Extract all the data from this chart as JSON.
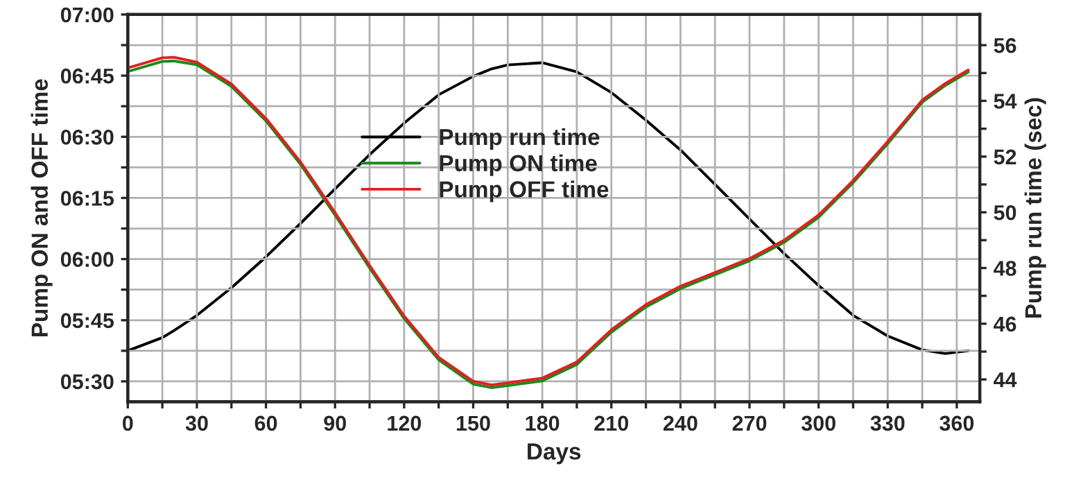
{
  "chart_data": {
    "type": "line",
    "xlabel": "Days",
    "ylabel": "Pump ON and OFF time",
    "y2label": "Pump run time (sec)",
    "x": [
      0,
      15,
      20,
      30,
      45,
      60,
      75,
      90,
      105,
      120,
      135,
      150,
      158,
      165,
      180,
      195,
      210,
      225,
      240,
      255,
      270,
      285,
      300,
      315,
      330,
      345,
      355,
      365
    ],
    "series": [
      {
        "name": "Pump run time",
        "color": "#000000",
        "axis": "y2",
        "values": [
          45.03,
          45.5,
          45.75,
          46.3,
          47.29,
          48.4,
          49.6,
          50.84,
          52.07,
          53.2,
          54.22,
          54.88,
          55.15,
          55.29,
          55.37,
          55.04,
          54.3,
          53.31,
          52.24,
          51.0,
          49.76,
          48.52,
          47.37,
          46.3,
          45.56,
          45.06,
          44.93,
          45.03
        ]
      },
      {
        "name": "Pump ON time",
        "color": "#1a8a1a",
        "values": [
          6.767,
          6.808,
          6.81,
          6.795,
          6.706,
          6.565,
          6.387,
          6.18,
          5.964,
          5.757,
          5.588,
          5.489,
          5.474,
          5.483,
          5.502,
          5.569,
          5.701,
          5.804,
          5.879,
          5.936,
          5.993,
          6.068,
          6.171,
          6.312,
          6.472,
          6.641,
          6.71,
          6.765
        ]
      },
      {
        "name": "Pump OFF time",
        "color": "#e02020",
        "values": [
          6.782,
          6.823,
          6.825,
          6.805,
          6.716,
          6.575,
          6.397,
          6.19,
          5.974,
          5.767,
          5.598,
          5.5,
          5.485,
          5.494,
          5.513,
          5.579,
          5.711,
          5.814,
          5.889,
          5.945,
          6.002,
          6.077,
          6.18,
          6.321,
          6.481,
          6.65,
          6.718,
          6.773
        ]
      }
    ],
    "xlim": [
      0,
      370
    ],
    "xticks": [
      0,
      {
        "value": 15,
        "label": null
      },
      30,
      {
        "value": 45,
        "label": null
      },
      60,
      {
        "value": 75,
        "label": null
      },
      90,
      {
        "value": 105,
        "label": null
      },
      120,
      {
        "value": 135,
        "label": null
      },
      150,
      {
        "value": 165,
        "label": null
      },
      180,
      {
        "value": 195,
        "label": null
      },
      210,
      {
        "value": 225,
        "label": null
      },
      240,
      {
        "value": 255,
        "label": null
      },
      270,
      {
        "value": 285,
        "label": null
      },
      300,
      {
        "value": 315,
        "label": null
      },
      330,
      {
        "value": 345,
        "label": null
      },
      360
    ],
    "ylim": [
      5.4167,
      7.0
    ],
    "yticks": [
      {
        "value": 5.5,
        "label": "05:30"
      },
      {
        "value": 5.625,
        "label": null
      },
      {
        "value": 5.75,
        "label": "05:45"
      },
      {
        "value": 5.875,
        "label": null
      },
      {
        "value": 6.0,
        "label": "06:00"
      },
      {
        "value": 6.125,
        "label": null
      },
      {
        "value": 6.25,
        "label": "06:15"
      },
      {
        "value": 6.375,
        "label": null
      },
      {
        "value": 6.5,
        "label": "06:30"
      },
      {
        "value": 6.625,
        "label": null
      },
      {
        "value": 6.75,
        "label": "06:45"
      },
      {
        "value": 6.875,
        "label": null
      },
      {
        "value": 7.0,
        "label": "07:00"
      }
    ],
    "y2lim": [
      43.2,
      57.1
    ],
    "y2ticks": [
      44,
      {
        "value": 45,
        "label": null
      },
      46,
      {
        "value": 47,
        "label": null
      },
      48,
      {
        "value": 49,
        "label": null
      },
      50,
      {
        "value": 51,
        "label": null
      },
      52,
      {
        "value": 53,
        "label": null
      },
      54,
      {
        "value": 55,
        "label": null
      },
      56
    ],
    "grid": true,
    "legend": "top",
    "marker": "none",
    "line_style": "solid"
  }
}
